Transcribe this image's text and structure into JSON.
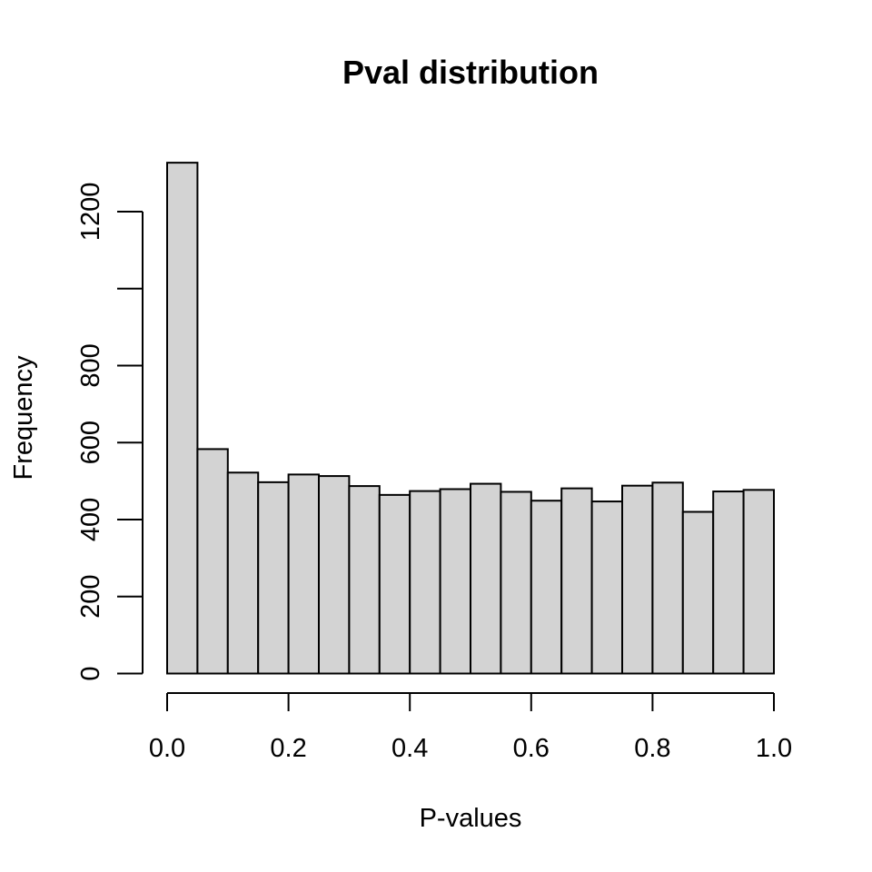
{
  "chart_data": {
    "type": "bar",
    "title": "Pval distribution",
    "xlabel": "P-values",
    "ylabel": "Frequency",
    "bar_fill": "#d3d3d3",
    "bar_stroke": "#000000",
    "xlim": [
      0,
      1
    ],
    "ylim": [
      0,
      1330
    ],
    "bin_width": 0.05,
    "x_ticks": [
      0.0,
      0.2,
      0.4,
      0.6,
      0.8,
      1.0
    ],
    "x_tick_labels": [
      "0.0",
      "0.2",
      "0.4",
      "0.6",
      "0.8",
      "1.0"
    ],
    "y_ticks": [
      0,
      200,
      400,
      600,
      800,
      1000,
      1200
    ],
    "y_tick_labels": [
      "0",
      "200",
      "400",
      "600",
      "800",
      "",
      "1200"
    ],
    "bins": [
      {
        "start": 0.0,
        "end": 0.05,
        "count": 1327
      },
      {
        "start": 0.05,
        "end": 0.1,
        "count": 583
      },
      {
        "start": 0.1,
        "end": 0.15,
        "count": 522
      },
      {
        "start": 0.15,
        "end": 0.2,
        "count": 497
      },
      {
        "start": 0.2,
        "end": 0.25,
        "count": 517
      },
      {
        "start": 0.25,
        "end": 0.3,
        "count": 513
      },
      {
        "start": 0.3,
        "end": 0.35,
        "count": 487
      },
      {
        "start": 0.35,
        "end": 0.4,
        "count": 464
      },
      {
        "start": 0.4,
        "end": 0.45,
        "count": 474
      },
      {
        "start": 0.45,
        "end": 0.5,
        "count": 479
      },
      {
        "start": 0.5,
        "end": 0.55,
        "count": 493
      },
      {
        "start": 0.55,
        "end": 0.6,
        "count": 472
      },
      {
        "start": 0.6,
        "end": 0.65,
        "count": 449
      },
      {
        "start": 0.65,
        "end": 0.7,
        "count": 481
      },
      {
        "start": 0.7,
        "end": 0.75,
        "count": 447
      },
      {
        "start": 0.75,
        "end": 0.8,
        "count": 488
      },
      {
        "start": 0.8,
        "end": 0.85,
        "count": 496
      },
      {
        "start": 0.85,
        "end": 0.9,
        "count": 420
      },
      {
        "start": 0.9,
        "end": 0.95,
        "count": 473
      },
      {
        "start": 0.95,
        "end": 1.0,
        "count": 477
      }
    ]
  }
}
